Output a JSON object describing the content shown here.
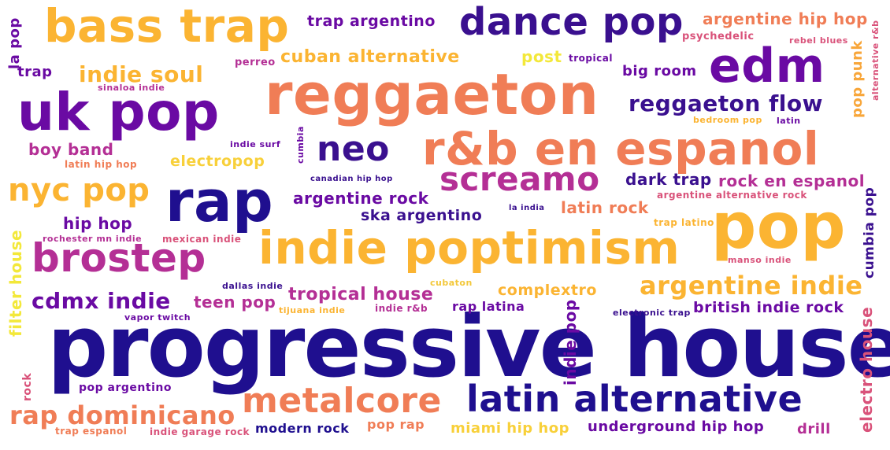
{
  "colors": {
    "navy": "#1f0f8f",
    "purple": "#6a0aa3",
    "magenta": "#b42f95",
    "pink": "#d9527a",
    "salmon": "#f07d56",
    "orange": "#f8a63a",
    "gold": "#fbb432",
    "yellow": "#f3e83a"
  },
  "words": {
    "progressive_house": "progressive house",
    "reggaeton": "reggaeton",
    "pop": "pop",
    "indie_poptimism": "indie poptimism",
    "rnb_en_espanol": "r&b en espanol",
    "uk_pop": "uk pop",
    "rap": "rap",
    "bass_trap": "bass trap",
    "latin_alternative": "latin alternative",
    "dance_pop": "dance pop",
    "edm": "edm",
    "brostep": "brostep",
    "metalcore": "metalcore",
    "neo": "neo",
    "screamo": "screamo",
    "nyc_pop": "nyc pop",
    "argentine_indie": "argentine indie",
    "rap_dominicano": "rap dominicano",
    "reggaeton_flow": "reggaeton flow",
    "indie_soul": "indie soul",
    "cdmx_indie": "cdmx indie",
    "cuban_alternative": "cuban alternative",
    "argentine_hip_hop": "argentine hip hop",
    "trap_argentino": "trap argentino",
    "argentine_rock": "argentine rock",
    "dark_trap": "dark trap",
    "rock_en_espanol": "rock en espanol",
    "tropical_house": "tropical house",
    "teen_pop": "teen pop",
    "latin_rock": "latin rock",
    "ska_argentino": "ska argentino",
    "complextro": "complextro",
    "british_indie_rock": "british indie rock",
    "underground_hip_hop": "underground hip hop",
    "miami_hip_hop": "miami hip hop",
    "modern_rock": "modern rock",
    "pop_rap": "pop rap",
    "drill": "drill",
    "rap_latina": "rap latina",
    "boy_band": "boy band",
    "electropop": "electropop",
    "hip_hop": "hip hop",
    "big_room": "big room",
    "post": "post",
    "pop_argentino": "pop argentino",
    "trap_espanol": "trap espanol",
    "indie_garage_rock": "indie garage rock",
    "trap": "trap",
    "la_pop": "la pop",
    "perreo": "perreo",
    "tropical": "tropical",
    "psychedelic": "psychedelic",
    "rebel_blues": "rebel blues",
    "sinaloa_indie": "sinaloa indie",
    "latin_hip_hop": "latin hip hop",
    "indie_surf": "indie surf",
    "canadian_hip_hop": "canadian hip hop",
    "bedroom_pop": "bedroom pop",
    "latin": "latin",
    "argentine_alternative_rock": "argentine alternative rock",
    "la_india": "la india",
    "trap_latino": "trap latino",
    "rochester_mn_indie": "rochester mn indie",
    "mexican_indie": "mexican indie",
    "manso_indie": "manso indie",
    "dallas_indie": "dallas indie",
    "cubaton": "cubaton",
    "vapor_twitch": "vapor twitch",
    "tijuana_indie": "tijuana indie",
    "indie_rnb": "indie r&b",
    "electronic_trap": "electronic trap",
    "cumbia": "cumbia",
    "pop_punk": "pop punk",
    "alternative_rnb": "alternative r&b",
    "cumbia_pop": "cumbia pop",
    "filter_house": "filter house",
    "indie_pop": "indie pop",
    "electro_house": "electro house",
    "rock": "rock"
  }
}
